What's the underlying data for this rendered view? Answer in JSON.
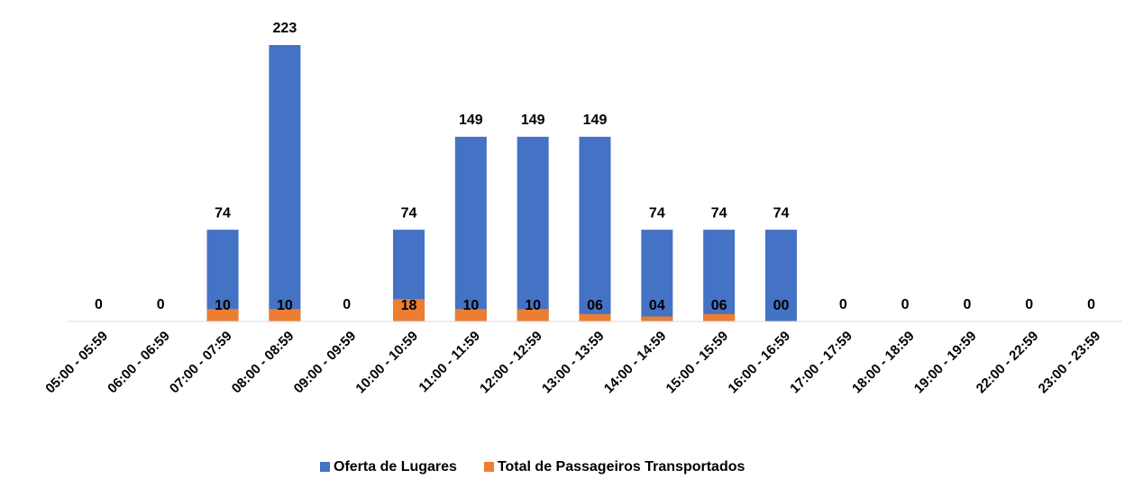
{
  "chart_data": {
    "type": "bar",
    "categories": [
      "05:00 - 05:59",
      "06:00 - 06:59",
      "07:00 - 07:59",
      "08:00 - 08:59",
      "09:00 - 09:59",
      "10:00 - 10:59",
      "11:00 - 11:59",
      "12:00 - 12:59",
      "13:00 - 13:59",
      "14:00 - 14:59",
      "15:00 - 15:59",
      "16:00 - 16:59",
      "17:00 - 17:59",
      "18:00 - 18:59",
      "19:00 - 19:59",
      "22:00 - 22:59",
      "23:00 - 23:59"
    ],
    "series": [
      {
        "name": "Oferta de Lugares",
        "color": "#4472c4",
        "values": [
          0,
          0,
          74,
          223,
          0,
          74,
          149,
          149,
          149,
          74,
          74,
          74,
          0,
          0,
          0,
          0,
          0
        ]
      },
      {
        "name": "Total de Passageiros Transportados",
        "color": "#ed7d31",
        "values": [
          null,
          null,
          10,
          10,
          null,
          18,
          10,
          10,
          6,
          4,
          6,
          0,
          null,
          null,
          null,
          null,
          null
        ],
        "value_labels": [
          null,
          null,
          "10",
          "10",
          null,
          "18",
          "10",
          "10",
          "06",
          "04",
          "06",
          "00",
          null,
          null,
          null,
          null,
          null
        ]
      }
    ],
    "ylim": [
      0,
      223
    ],
    "legend": "bottom"
  }
}
